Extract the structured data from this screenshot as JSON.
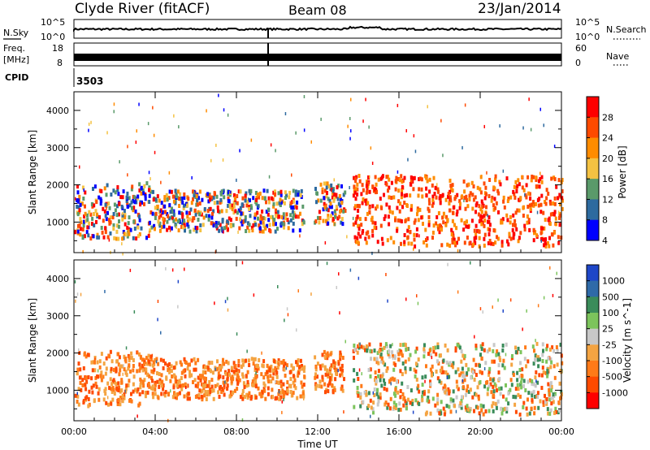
{
  "header": {
    "station": "Clyde River (fitACF)",
    "beam": "Beam 08",
    "date": "23/Jan/2014"
  },
  "nsky_panel": {
    "left_label": "N.Sky",
    "left_ticks": [
      "10^5",
      "10^0"
    ],
    "right_label": "N.Search",
    "right_ticks": [
      "10^5",
      "10^0"
    ]
  },
  "freq_panel": {
    "left_label_line1": "Freq.",
    "left_label_line2": "[MHz]",
    "left_ticks": [
      "18",
      "8"
    ],
    "right_label": "Nave",
    "right_ticks": [
      "60",
      "0"
    ]
  },
  "cpid": {
    "label": "CPID",
    "value": "3503"
  },
  "x_axis": {
    "label": "Time UT",
    "ticks": [
      "00:00",
      "04:00",
      "08:00",
      "12:00",
      "16:00",
      "20:00",
      "00:00"
    ]
  },
  "chart_data": [
    {
      "type": "heatmap",
      "title": "",
      "xlabel": "Time UT",
      "ylabel": "Slant Range [km]",
      "xlim": [
        0,
        24
      ],
      "ylim": [
        180,
        4500
      ],
      "yticks": [
        1000,
        2000,
        3000,
        4000
      ],
      "colorbar": {
        "label": "Power [dB]",
        "ticks": [
          "28",
          "24",
          "20",
          "16",
          "12",
          "8",
          "4"
        ],
        "colors": [
          "#ff0000",
          "#ff4a00",
          "#ff8c00",
          "#f4c242",
          "#5a9a6a",
          "#2d6a9f",
          "#0000ff"
        ]
      },
      "regions": [
        {
          "t0": 0.0,
          "t1": 3.8,
          "r0": 600,
          "r1": 2100,
          "level": "mixed"
        },
        {
          "t0": 3.8,
          "t1": 11.3,
          "r0": 800,
          "r1": 1900,
          "level": "mixed"
        },
        {
          "t0": 11.8,
          "t1": 13.3,
          "r0": 1000,
          "r1": 2100,
          "level": "mixed"
        },
        {
          "t0": 13.7,
          "t1": 24.0,
          "r0": 400,
          "r1": 2300,
          "level": "high"
        }
      ]
    },
    {
      "type": "heatmap",
      "title": "",
      "xlabel": "Time UT",
      "ylabel": "Slant Range [km]",
      "xlim": [
        0,
        24
      ],
      "ylim": [
        180,
        4500
      ],
      "yticks": [
        1000,
        2000,
        3000,
        4000
      ],
      "colorbar": {
        "label": "Velocity [m s^-1]",
        "ticks": [
          "1000",
          "500",
          "100",
          "25",
          "-25",
          "-100",
          "-500",
          "-1000"
        ],
        "colors": [
          "#1e46c8",
          "#2f6aa8",
          "#3a8c5a",
          "#7cc45c",
          "#c8c8c8",
          "#f4a442",
          "#ff7a18",
          "#ff4a00",
          "#ff0000"
        ]
      },
      "regions": [
        {
          "t0": 0.0,
          "t1": 3.8,
          "r0": 600,
          "r1": 2100,
          "level": "negative"
        },
        {
          "t0": 3.8,
          "t1": 11.3,
          "r0": 800,
          "r1": 1900,
          "level": "negative"
        },
        {
          "t0": 11.8,
          "t1": 13.3,
          "r0": 1000,
          "r1": 2100,
          "level": "negative"
        },
        {
          "t0": 13.7,
          "t1": 24.0,
          "r0": 400,
          "r1": 2300,
          "level": "mixed"
        }
      ]
    }
  ]
}
